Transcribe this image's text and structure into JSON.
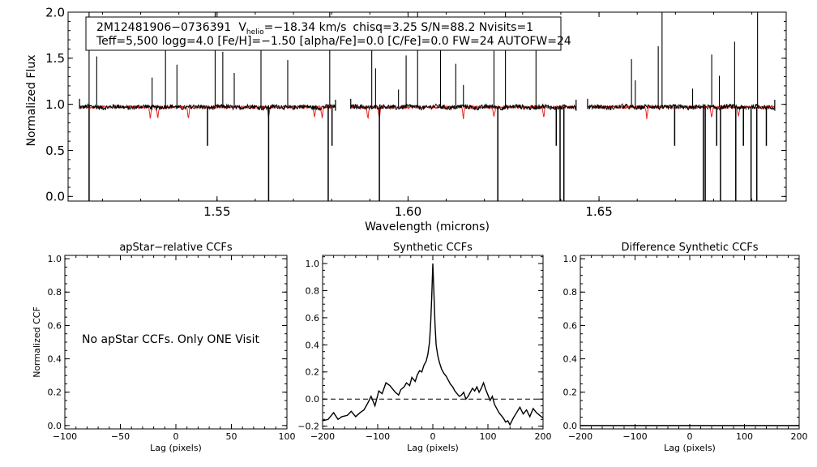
{
  "chart_data": [
    {
      "id": "spectrum",
      "type": "line",
      "xlabel": "Wavelength (microns)",
      "ylabel": "Normalized Flux",
      "xlim": [
        1.511,
        1.699
      ],
      "ylim": [
        -0.05,
        2.0
      ],
      "xticks": [
        "1.55",
        "1.60",
        "1.65"
      ],
      "xtick_values": [
        1.55,
        1.6,
        1.65
      ],
      "yticks": [
        "0.0",
        "0.5",
        "1.0",
        "1.5",
        "2.0"
      ],
      "ytick_values": [
        0.0,
        0.5,
        1.0,
        1.5,
        2.0
      ],
      "annotation": {
        "star_id": "2M12481906−0736391",
        "vhelio_prefix": "V",
        "vhelio_subscript": "helio",
        "vhelio_value": "=−18.34 km/s",
        "stats": "chisq=3.25  S/N=88.2  Nvisits=1",
        "line2": "Teff=5,500 logg=4.0 [Fe/H]=−1.50 [alpha/Fe]=0.0 [C/Fe]=0.0 FW=24 AUTOFW=24"
      },
      "chip_ranges": [
        [
          1.514,
          1.581
        ],
        [
          1.585,
          1.644
        ],
        [
          1.647,
          1.696
        ]
      ],
      "continuum": 0.97,
      "series": [
        {
          "color": "#000000",
          "spikes_up": [
            1.5165,
            1.5185,
            1.533,
            1.5365,
            1.5395,
            1.5495,
            1.5515,
            1.5545,
            1.5615,
            1.5685,
            1.5795,
            1.5905,
            1.5915,
            1.5975,
            1.5995,
            1.6025,
            1.6085,
            1.6125,
            1.6145,
            1.6225,
            1.6255,
            1.6335,
            1.6585,
            1.6595,
            1.6655,
            1.6665,
            1.6745,
            1.6795,
            1.6815,
            1.6855,
            1.6915
          ],
          "spikes_down": [
            1.5165,
            1.5475,
            1.5635,
            1.5791,
            1.5801,
            1.5925,
            1.6235,
            1.6388,
            1.6398,
            1.6408,
            1.6698,
            1.6773,
            1.6778,
            1.6808,
            1.6818,
            1.6858,
            1.6878,
            1.6898,
            1.6913,
            1.6938
          ]
        },
        {
          "color": "#e8241c",
          "absorption": [
            1.5325,
            1.5345,
            1.5425,
            1.5635,
            1.5755,
            1.5775,
            1.5895,
            1.5925,
            1.6145,
            1.6225,
            1.6355,
            1.6465,
            1.6625,
            1.6795,
            1.6865
          ]
        }
      ]
    },
    {
      "id": "apstar-ccf",
      "type": "line",
      "title": "apStar−relative CCFs",
      "xlabel": "Lag (pixels)",
      "ylabel": "Normalized CCF",
      "xlim": [
        -100,
        100
      ],
      "ylim": [
        -0.02,
        1.02
      ],
      "xticks": [
        "−100",
        "−50",
        "0",
        "50",
        "100"
      ],
      "xtick_values": [
        -100,
        -50,
        0,
        50,
        100
      ],
      "yticks": [
        "0.0",
        "0.2",
        "0.4",
        "0.6",
        "0.8",
        "1.0"
      ],
      "ytick_values": [
        0.0,
        0.2,
        0.4,
        0.6,
        0.8,
        1.0
      ],
      "message": "No apStar CCFs.  Only ONE Visit",
      "series": []
    },
    {
      "id": "synthetic-ccf",
      "type": "line",
      "title": "Synthetic CCFs",
      "xlabel": "Lag (pixels)",
      "xlim": [
        -200,
        200
      ],
      "ylim": [
        -0.22,
        1.06
      ],
      "xticks": [
        "−200",
        "−100",
        "0",
        "100",
        "200"
      ],
      "xtick_values": [
        -200,
        -100,
        0,
        100,
        200
      ],
      "yticks": [
        "−0.2",
        "0.0",
        "0.2",
        "0.4",
        "0.6",
        "0.8",
        "1.0"
      ],
      "ytick_values": [
        -0.2,
        0.0,
        0.2,
        0.4,
        0.6,
        0.8,
        1.0
      ],
      "zero_line": 0.0,
      "series": [
        {
          "color": "#000000",
          "x": [
            -200,
            -190,
            -180,
            -172,
            -165,
            -155,
            -148,
            -140,
            -132,
            -125,
            -118,
            -112,
            -105,
            -98,
            -92,
            -85,
            -78,
            -72,
            -68,
            -62,
            -58,
            -52,
            -48,
            -42,
            -38,
            -32,
            -28,
            -24,
            -20,
            -16,
            -12,
            -9,
            -6,
            -4,
            -2,
            0,
            2,
            4,
            6,
            9,
            12,
            16,
            20,
            24,
            28,
            32,
            36,
            40,
            44,
            48,
            52,
            56,
            60,
            64,
            68,
            72,
            76,
            80,
            84,
            88,
            92,
            96,
            100,
            104,
            108,
            112,
            116,
            120,
            124,
            128,
            132,
            136,
            140,
            146,
            152,
            158,
            164,
            170,
            176,
            182,
            188,
            194,
            200
          ],
          "y": [
            -0.16,
            -0.15,
            -0.1,
            -0.15,
            -0.13,
            -0.12,
            -0.09,
            -0.13,
            -0.1,
            -0.08,
            -0.03,
            0.02,
            -0.05,
            0.06,
            0.04,
            0.12,
            0.1,
            0.07,
            0.05,
            0.03,
            0.07,
            0.09,
            0.12,
            0.1,
            0.16,
            0.13,
            0.18,
            0.21,
            0.2,
            0.25,
            0.28,
            0.33,
            0.42,
            0.55,
            0.75,
            1.0,
            0.78,
            0.55,
            0.4,
            0.32,
            0.27,
            0.22,
            0.19,
            0.17,
            0.14,
            0.11,
            0.09,
            0.06,
            0.04,
            0.02,
            0.03,
            0.05,
            0.0,
            0.02,
            0.05,
            0.08,
            0.06,
            0.09,
            0.05,
            0.08,
            0.12,
            0.07,
            0.03,
            -0.01,
            0.02,
            -0.04,
            -0.07,
            -0.1,
            -0.12,
            -0.14,
            -0.17,
            -0.16,
            -0.19,
            -0.14,
            -0.1,
            -0.06,
            -0.11,
            -0.08,
            -0.13,
            -0.07,
            -0.1,
            -0.12,
            -0.14
          ]
        }
      ]
    },
    {
      "id": "difference-ccf",
      "type": "line",
      "title": "Difference Synthetic CCFs",
      "xlabel": "Lag (pixels)",
      "xlim": [
        -200,
        200
      ],
      "ylim": [
        -0.02,
        1.02
      ],
      "xticks": [
        "−200",
        "−100",
        "0",
        "100",
        "200"
      ],
      "xtick_values": [
        -200,
        -100,
        0,
        100,
        200
      ],
      "yticks": [
        "0.0",
        "0.2",
        "0.4",
        "0.6",
        "0.8",
        "1.0"
      ],
      "ytick_values": [
        0.0,
        0.2,
        0.4,
        0.6,
        0.8,
        1.0
      ],
      "series": [
        {
          "color": "#000000",
          "x": [
            -200,
            200
          ],
          "y": [
            0.0,
            0.0
          ]
        }
      ]
    }
  ]
}
